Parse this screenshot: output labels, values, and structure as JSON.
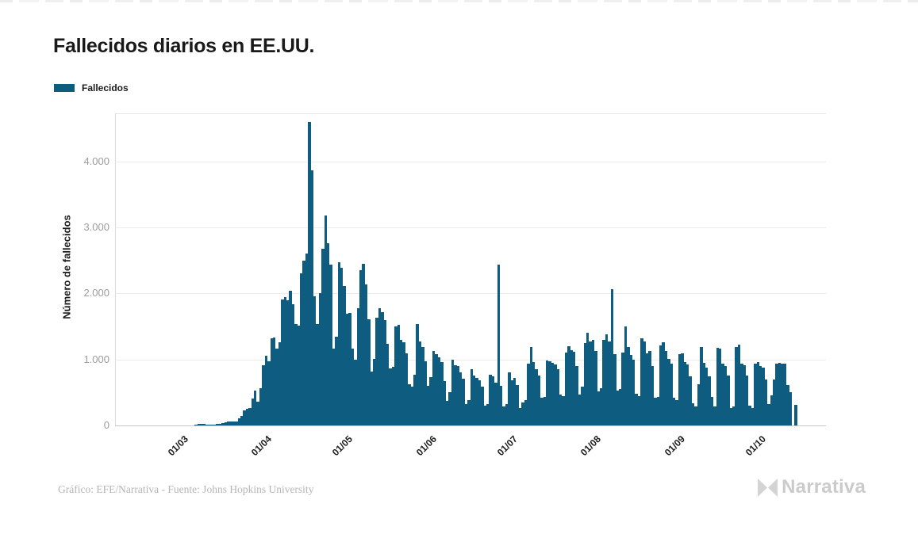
{
  "header": {
    "title": "Fallecidos diarios en EE.UU."
  },
  "legend": {
    "label": "Fallecidos",
    "color": "#0e5c80"
  },
  "footer": {
    "credit": "Gráfico: EFE/Narrativa - Fuente: Johns Hopkins University",
    "brand": "Narrativa"
  },
  "chart_data": {
    "type": "bar",
    "title": "Fallecidos diarios en EE.UU.",
    "series_name": "Fallecidos",
    "xlabel": "",
    "ylabel": "Número de fallecidos",
    "bar_color": "#0e5c80",
    "grid": true,
    "legend_position": "top-left",
    "ylim": [
      0,
      4726
    ],
    "y_ticks": [
      {
        "value": 0,
        "label": "0"
      },
      {
        "value": 1000,
        "label": "1.000"
      },
      {
        "value": 2000,
        "label": "2.000"
      },
      {
        "value": 3000,
        "label": "3.000"
      },
      {
        "value": 4000,
        "label": "4.000"
      }
    ],
    "x_ticks": [
      {
        "label": "01/03",
        "day_index": 15
      },
      {
        "label": "01/04",
        "day_index": 46
      },
      {
        "label": "01/05",
        "day_index": 76
      },
      {
        "label": "01/06",
        "day_index": 107
      },
      {
        "label": "01/07",
        "day_index": 137
      },
      {
        "label": "01/08",
        "day_index": 168
      },
      {
        "label": "01/09",
        "day_index": 199
      },
      {
        "label": "01/10",
        "day_index": 229
      }
    ],
    "start_date": "2020-02-15",
    "end_date": "2020-10-15",
    "values": [
      0,
      0,
      0,
      0,
      0,
      0,
      1,
      1,
      1,
      2,
      2,
      2,
      3,
      3,
      2,
      2,
      3,
      3,
      4,
      5,
      18,
      25,
      30,
      25,
      12,
      12,
      15,
      18,
      25,
      30,
      40,
      45,
      57,
      60,
      55,
      65,
      111,
      140,
      225,
      247,
      268,
      411,
      525,
      363,
      558,
      912,
      1050,
      970,
      1320,
      1331,
      1165,
      1255,
      1906,
      1940,
      1900,
      2035,
      1830,
      1530,
      1510,
      2300,
      2495,
      2600,
      4600,
      3860,
      1950,
      1540,
      2000,
      2675,
      3180,
      2760,
      2440,
      1160,
      1340,
      2470,
      2390,
      2110,
      1690,
      1700,
      1160,
      990,
      1770,
      2350,
      2450,
      2130,
      1610,
      820,
      1010,
      1630,
      1770,
      1720,
      1590,
      1240,
      860,
      890,
      1500,
      1520,
      1290,
      1260,
      1090,
      620,
      590,
      770,
      1530,
      1270,
      1190,
      970,
      600,
      730,
      1130,
      1080,
      1030,
      960,
      670,
      370,
      500,
      1000,
      910,
      900,
      800,
      710,
      320,
      380,
      850,
      760,
      720,
      680,
      590,
      300,
      330,
      770,
      740,
      650,
      2430,
      600,
      290,
      320,
      800,
      680,
      720,
      610,
      260,
      350,
      380,
      930,
      1190,
      960,
      850,
      760,
      420,
      430,
      980,
      970,
      950,
      920,
      850,
      470,
      440,
      1100,
      1200,
      1140,
      1110,
      900,
      470,
      590,
      1250,
      1400,
      1270,
      1290,
      1130,
      510,
      560,
      1300,
      1380,
      1270,
      2060,
      1080,
      530,
      550,
      1100,
      1500,
      1190,
      1070,
      1000,
      480,
      440,
      1320,
      1270,
      1090,
      1130,
      900,
      420,
      430,
      1210,
      1260,
      1130,
      1010,
      940,
      420,
      390,
      1080,
      1090,
      960,
      920,
      740,
      340,
      290,
      620,
      1190,
      950,
      880,
      740,
      430,
      290,
      1180,
      1160,
      940,
      900,
      760,
      270,
      290,
      1190,
      1220,
      930,
      910,
      760,
      300,
      270,
      940,
      960,
      900,
      870,
      690,
      330,
      450,
      700,
      930,
      950,
      940,
      930,
      610,
      500,
      0,
      310,
      0
    ]
  }
}
